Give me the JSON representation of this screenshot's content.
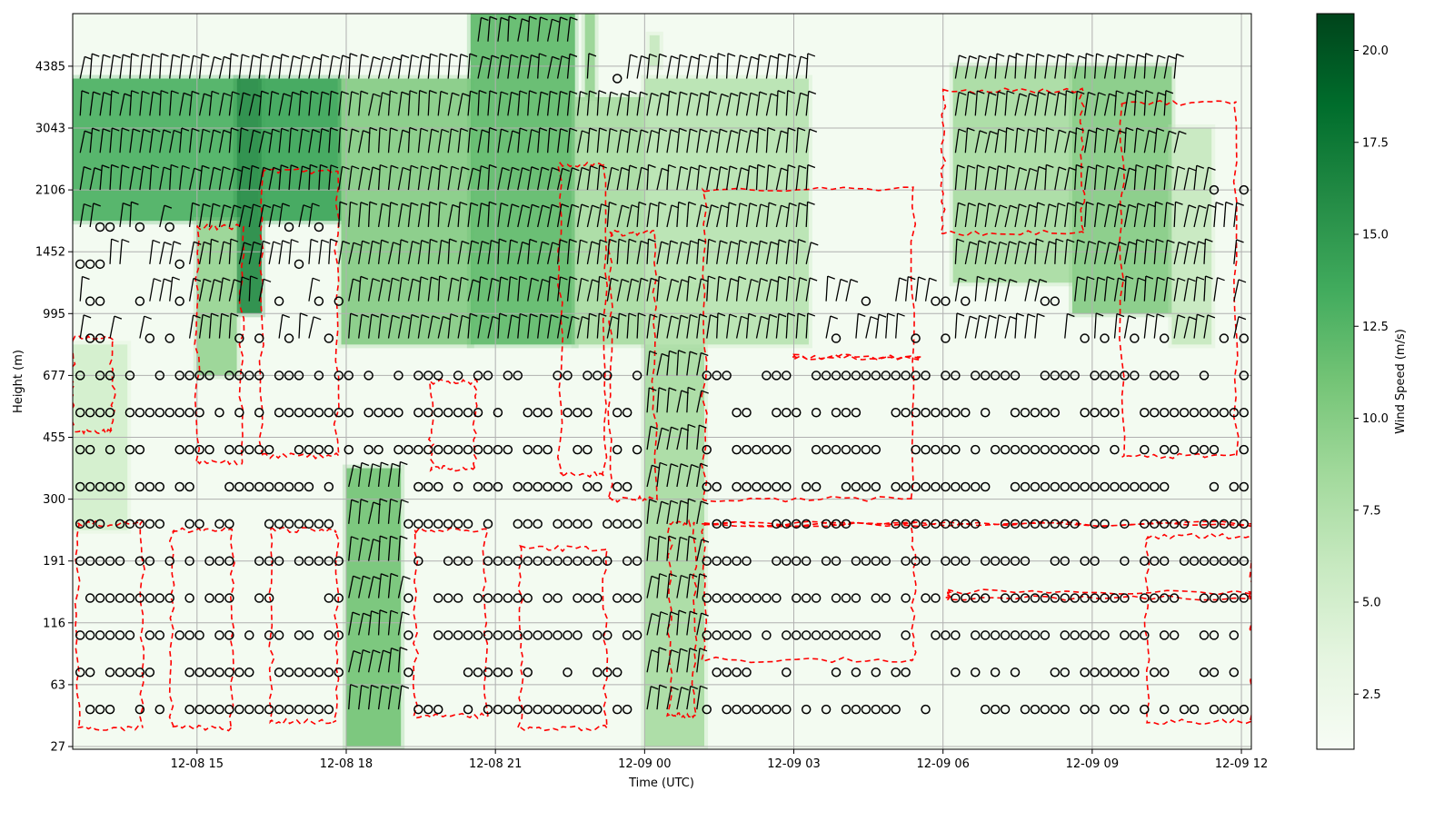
{
  "chart_data": {
    "type": "heatmap",
    "title": "",
    "xlabel": "Time (UTC)",
    "ylabel": "Height (m)",
    "colorbar_label": "Wind Speed (m/s)",
    "colormap": [
      "#f7fcf5",
      "#e5f5e0",
      "#c7e9c0",
      "#a1d99b",
      "#74c476",
      "#41ab5d",
      "#238b45",
      "#006d2c",
      "#00441b"
    ],
    "x_range_hours": [
      12.5,
      36.2
    ],
    "x_ticks": [
      {
        "hour": 15,
        "label": "12-08 15"
      },
      {
        "hour": 18,
        "label": "12-08 18"
      },
      {
        "hour": 21,
        "label": "12-08 21"
      },
      {
        "hour": 24,
        "label": "12-09 00"
      },
      {
        "hour": 27,
        "label": "12-09 03"
      },
      {
        "hour": 30,
        "label": "12-09 06"
      },
      {
        "hour": 33,
        "label": "12-09 09"
      },
      {
        "hour": 36,
        "label": "12-09 12"
      }
    ],
    "y_ticks": [
      27,
      63,
      116,
      191,
      300,
      455,
      677,
      995,
      1452,
      2106,
      3043,
      4385
    ],
    "colorbar_range": [
      1.0,
      21.0
    ],
    "colorbar_ticks": [
      2.5,
      5.0,
      7.5,
      10.0,
      12.5,
      15.0,
      17.5,
      20.0
    ],
    "grid": true,
    "overlays": [
      "wind barbs",
      "calm-wind circles",
      "red dashed contour"
    ],
    "speed_regions": [
      {
        "t": [
          12.5,
          15.8
        ],
        "levels": [
          8.5,
          10.8
        ],
        "speed": 13
      },
      {
        "t": [
          15.8,
          16.3
        ],
        "levels": [
          7.0,
          10.8
        ],
        "speed": 16
      },
      {
        "t": [
          16.3,
          17.9
        ],
        "levels": [
          8.5,
          10.8
        ],
        "speed": 14
      },
      {
        "t": [
          17.9,
          20.5
        ],
        "levels": [
          6.5,
          10.8
        ],
        "speed": 10
      },
      {
        "t": [
          20.5,
          22.6
        ],
        "levels": [
          6.5,
          12.8
        ],
        "speed": 12
      },
      {
        "t": [
          22.6,
          24.0
        ],
        "levels": [
          6.5,
          10.5
        ],
        "speed": 8
      },
      {
        "t": [
          24.0,
          25.2
        ],
        "levels": [
          0.0,
          7.5
        ],
        "speed": 8
      },
      {
        "t": [
          24.0,
          27.3
        ],
        "levels": [
          6.5,
          10.8
        ],
        "speed": 7
      },
      {
        "t": [
          18.0,
          19.1
        ],
        "levels": [
          0.0,
          4.5
        ],
        "speed": 11
      },
      {
        "t": [
          12.5,
          13.6
        ],
        "levels": [
          3.5,
          6.5
        ],
        "speed": 5
      },
      {
        "t": [
          15.0,
          15.8
        ],
        "levels": [
          6.0,
          8.5
        ],
        "speed": 9
      },
      {
        "t": [
          30.2,
          32.6
        ],
        "levels": [
          7.5,
          11.0
        ],
        "speed": 8
      },
      {
        "t": [
          32.6,
          34.6
        ],
        "levels": [
          7.0,
          11.0
        ],
        "speed": 10
      },
      {
        "t": [
          34.6,
          35.4
        ],
        "levels": [
          6.5,
          10.0
        ],
        "speed": 6
      },
      {
        "t": [
          22.8,
          23.0
        ],
        "levels": [
          10.5,
          12.8
        ],
        "speed": 9
      },
      {
        "t": [
          24.1,
          24.3
        ],
        "levels": [
          11.0,
          11.5
        ],
        "speed": 6
      }
    ]
  }
}
